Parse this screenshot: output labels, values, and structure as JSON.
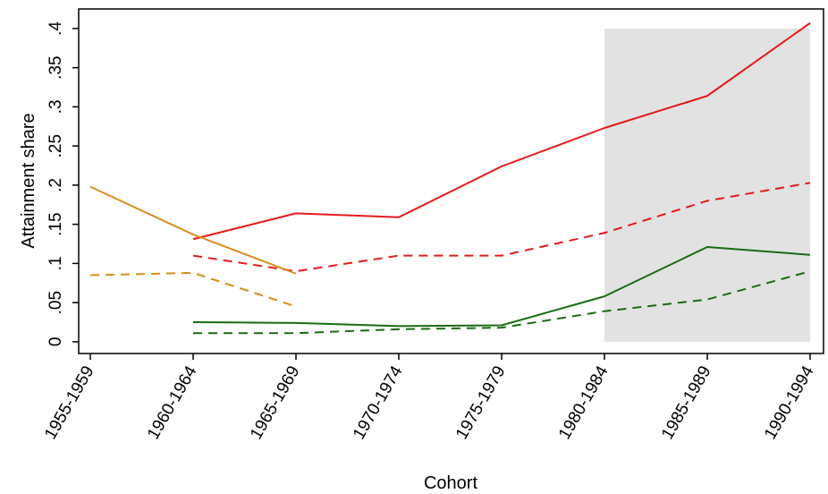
{
  "chart_data": {
    "type": "line",
    "title": "",
    "xlabel": "Cohort",
    "ylabel": "Attainment share",
    "categories": [
      "1955-1959",
      "1960-1964",
      "1965-1969",
      "1970-1974",
      "1975-1979",
      "1980-1984",
      "1985-1989",
      "1990-1994"
    ],
    "y_ticks": [
      0,
      0.05,
      0.1,
      0.15,
      0.2,
      0.25,
      0.3,
      0.35,
      0.4
    ],
    "y_tick_labels": [
      "0",
      ".05",
      ".1",
      ".15",
      ".2",
      ".25",
      ".3",
      ".35",
      ".4"
    ],
    "ylim": [
      -0.015,
      0.425
    ],
    "grid": false,
    "shaded_region": {
      "from": "1980-1984",
      "to": "1990-1994",
      "y_from": 0,
      "y_to": 0.4,
      "color": "#e2e2e2"
    },
    "series": [
      {
        "color": "#e41a1c",
        "dash": "solid",
        "values": [
          null,
          0.131,
          0.164,
          0.159,
          0.224,
          0.273,
          0.314,
          0.407
        ]
      },
      {
        "color": "#e41a1c",
        "dash": "dashed",
        "values": [
          null,
          0.11,
          0.09,
          0.11,
          0.11,
          0.139,
          0.18,
          0.203
        ]
      },
      {
        "color": "#d98b1a",
        "dash": "solid",
        "values": [
          0.198,
          0.137,
          0.087,
          null,
          null,
          null,
          null,
          null
        ]
      },
      {
        "color": "#d98b1a",
        "dash": "dashed",
        "values": [
          0.085,
          0.088,
          0.045,
          null,
          null,
          null,
          null,
          null
        ]
      },
      {
        "color": "#1a6b12",
        "dash": "solid",
        "values": [
          null,
          0.025,
          0.024,
          0.02,
          0.021,
          0.058,
          0.121,
          0.111
        ]
      },
      {
        "color": "#1a6b12",
        "dash": "dashed",
        "values": [
          null,
          0.011,
          0.011,
          0.016,
          0.018,
          0.039,
          0.054,
          0.09
        ]
      }
    ]
  }
}
